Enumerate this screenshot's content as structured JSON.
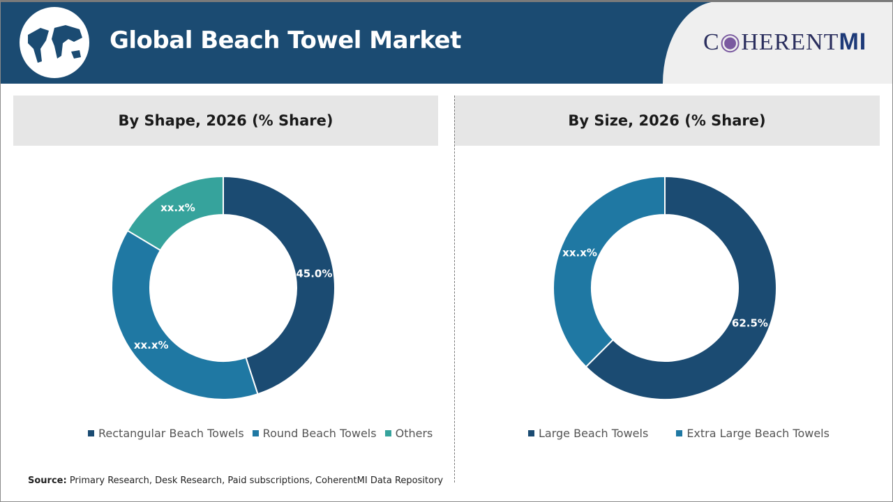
{
  "header": {
    "title": "Global Beach Towel Market",
    "logo_text": "COHERENTMI"
  },
  "colors": {
    "dark": "#1b4b72",
    "mid": "#1f78a3",
    "teal": "#36a39c",
    "header": "#1b4b72"
  },
  "chart_data": [
    {
      "type": "pie",
      "donut": true,
      "title": "By Shape, 2026 (% Share)",
      "categories": [
        "Rectangular Beach Towels",
        "Round Beach Towels",
        "Others"
      ],
      "values": [
        45.0,
        38.6,
        16.4
      ],
      "data_labels": [
        "45.0%",
        "xx.x%",
        "xx.x%"
      ],
      "colors": [
        "#1b4b72",
        "#1f78a3",
        "#36a39c"
      ],
      "legend": "bottom"
    },
    {
      "type": "pie",
      "donut": true,
      "title": "By Size, 2026 (% Share)",
      "categories": [
        "Large Beach Towels",
        "Extra Large Beach Towels"
      ],
      "values": [
        62.5,
        37.5
      ],
      "data_labels": [
        "62.5%",
        "xx.x%"
      ],
      "colors": [
        "#1b4b72",
        "#1f78a3"
      ],
      "legend": "bottom"
    }
  ],
  "footer": {
    "source_label": "Source:",
    "source_text": " Primary Research, Desk Research, Paid subscriptions, CoherentMI Data Repository"
  }
}
